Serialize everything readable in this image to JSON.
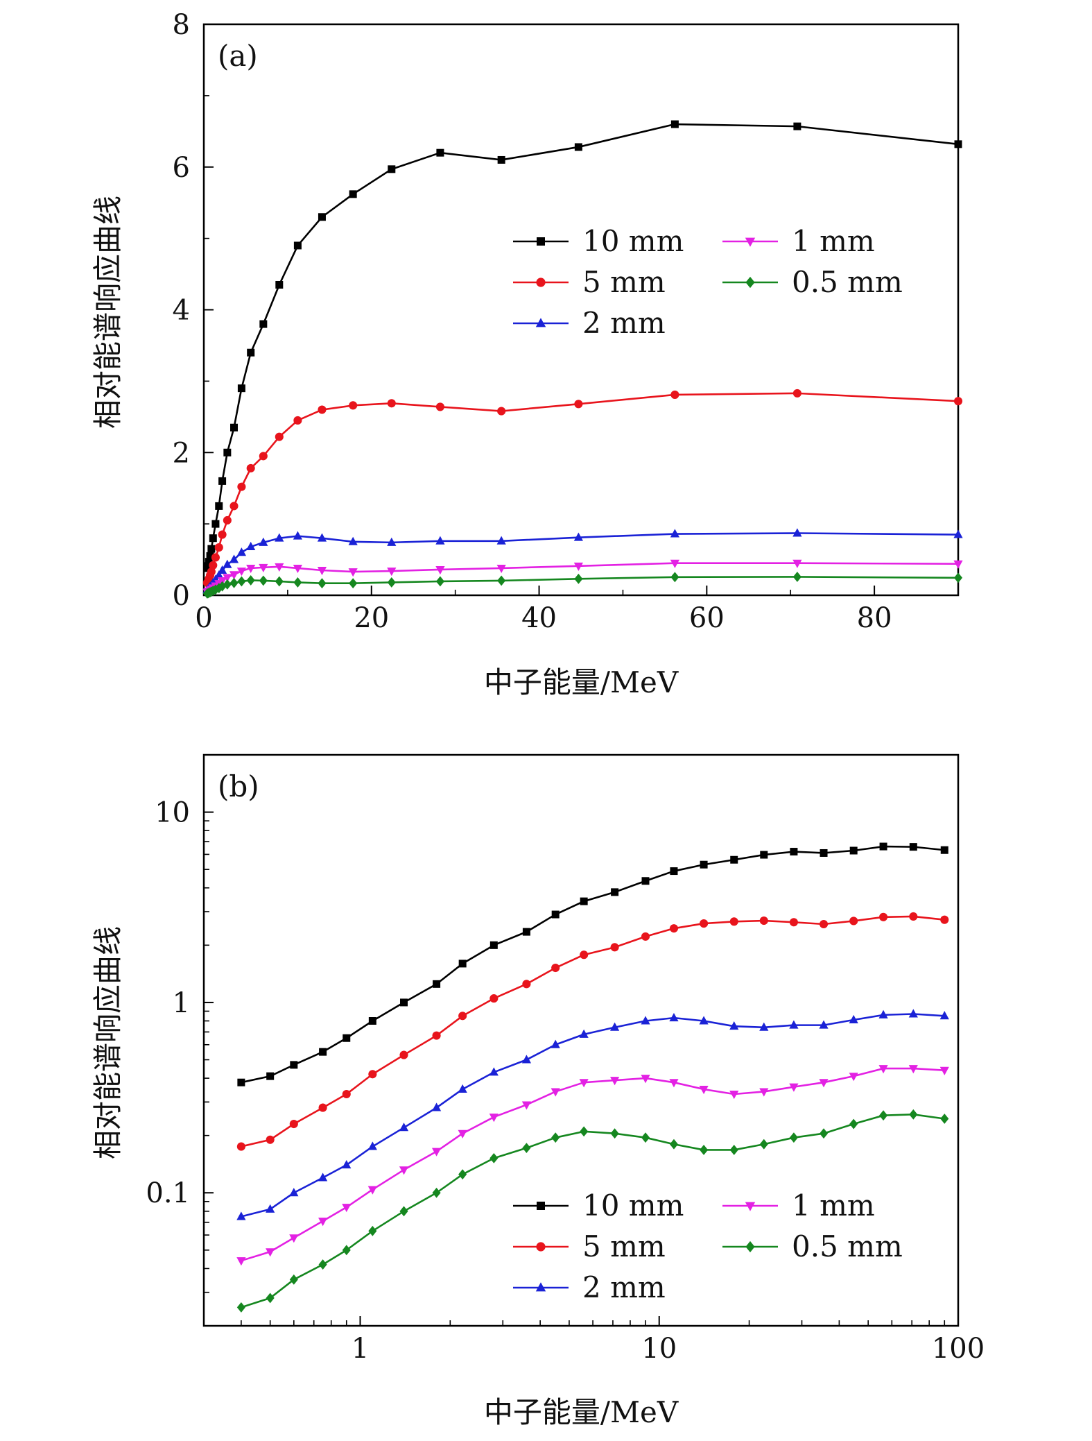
{
  "chart_data": [
    {
      "type": "line",
      "panel_label": "(a)",
      "xlabel": "中子能量/MeV",
      "ylabel": "相对能谱响应曲线",
      "xscale": "linear",
      "yscale": "linear",
      "xlim": [
        0,
        90
      ],
      "ylim": [
        0,
        8
      ],
      "xticks": [
        0,
        20,
        40,
        60,
        80
      ],
      "xtick_labels": [
        "0",
        "20",
        "40",
        "60",
        "80"
      ],
      "yticks": [
        0,
        2,
        4,
        6,
        8
      ],
      "ytick_labels": [
        "0",
        "2",
        "4",
        "6",
        "8"
      ],
      "grid": false,
      "legend": "right",
      "x": [
        0.4,
        0.5,
        0.6,
        0.75,
        0.9,
        1.1,
        1.4,
        1.8,
        2.2,
        2.8,
        3.6,
        4.5,
        5.6,
        7.1,
        9,
        11.2,
        14.1,
        17.8,
        22.4,
        28.2,
        35.5,
        44.7,
        56.2,
        70.8,
        90
      ],
      "series": [
        {
          "name": "10 mm",
          "color": "#000000",
          "marker": "square",
          "values": [
            0.38,
            0.41,
            0.47,
            0.55,
            0.65,
            0.8,
            1.0,
            1.25,
            1.6,
            2.0,
            2.35,
            2.9,
            3.4,
            3.8,
            4.35,
            4.9,
            5.3,
            5.62,
            5.97,
            6.2,
            6.1,
            6.28,
            6.6,
            6.57,
            6.32
          ]
        },
        {
          "name": "5 mm",
          "color": "#e8141c",
          "marker": "circle",
          "values": [
            0.175,
            0.19,
            0.23,
            0.28,
            0.33,
            0.42,
            0.53,
            0.67,
            0.85,
            1.05,
            1.25,
            1.52,
            1.78,
            1.95,
            2.22,
            2.45,
            2.6,
            2.66,
            2.69,
            2.64,
            2.58,
            2.68,
            2.81,
            2.83,
            2.72
          ]
        },
        {
          "name": "2 mm",
          "color": "#1a22d6",
          "marker": "triangle-up",
          "values": [
            0.075,
            0.082,
            0.1,
            0.12,
            0.14,
            0.175,
            0.22,
            0.28,
            0.35,
            0.43,
            0.5,
            0.6,
            0.68,
            0.74,
            0.8,
            0.83,
            0.8,
            0.75,
            0.74,
            0.76,
            0.76,
            0.81,
            0.86,
            0.87,
            0.85
          ]
        },
        {
          "name": "1 mm",
          "color": "#e321e3",
          "marker": "triangle-down",
          "values": [
            0.044,
            0.049,
            0.058,
            0.071,
            0.084,
            0.104,
            0.132,
            0.165,
            0.205,
            0.25,
            0.29,
            0.34,
            0.38,
            0.39,
            0.4,
            0.38,
            0.35,
            0.33,
            0.34,
            0.36,
            0.38,
            0.41,
            0.45,
            0.45,
            0.44
          ]
        },
        {
          "name": "0.5 mm",
          "color": "#15871f",
          "marker": "diamond",
          "values": [
            0.025,
            0.028,
            0.035,
            0.042,
            0.05,
            0.063,
            0.08,
            0.1,
            0.125,
            0.152,
            0.172,
            0.195,
            0.21,
            0.205,
            0.195,
            0.18,
            0.168,
            0.168,
            0.18,
            0.195,
            0.205,
            0.23,
            0.255,
            0.258,
            0.245
          ]
        }
      ]
    },
    {
      "type": "line",
      "panel_label": "(b)",
      "xlabel": "中子能量/MeV",
      "ylabel": "相对能谱响应曲线",
      "xscale": "log",
      "yscale": "log",
      "xlim": [
        0.3,
        100
      ],
      "ylim": [
        0.02,
        20
      ],
      "xticks": [
        1,
        10,
        100
      ],
      "xtick_labels": [
        "1",
        "10",
        "100"
      ],
      "yticks": [
        0.1,
        1,
        10
      ],
      "ytick_labels": [
        "0.1",
        "1",
        "10"
      ],
      "grid": false,
      "legend": "bottom-right",
      "x": [
        0.4,
        0.5,
        0.6,
        0.75,
        0.9,
        1.1,
        1.4,
        1.8,
        2.2,
        2.8,
        3.6,
        4.5,
        5.6,
        7.1,
        9,
        11.2,
        14.1,
        17.8,
        22.4,
        28.2,
        35.5,
        44.7,
        56.2,
        70.8,
        90
      ],
      "series": [
        {
          "name": "10 mm",
          "color": "#000000",
          "marker": "square",
          "values": [
            0.38,
            0.41,
            0.47,
            0.55,
            0.65,
            0.8,
            1.0,
            1.25,
            1.6,
            2.0,
            2.35,
            2.9,
            3.4,
            3.8,
            4.35,
            4.9,
            5.3,
            5.62,
            5.97,
            6.2,
            6.1,
            6.28,
            6.6,
            6.57,
            6.32
          ]
        },
        {
          "name": "5 mm",
          "color": "#e8141c",
          "marker": "circle",
          "values": [
            0.175,
            0.19,
            0.23,
            0.28,
            0.33,
            0.42,
            0.53,
            0.67,
            0.85,
            1.05,
            1.25,
            1.52,
            1.78,
            1.95,
            2.22,
            2.45,
            2.6,
            2.66,
            2.69,
            2.64,
            2.58,
            2.68,
            2.81,
            2.83,
            2.72
          ]
        },
        {
          "name": "2 mm",
          "color": "#1a22d6",
          "marker": "triangle-up",
          "values": [
            0.075,
            0.082,
            0.1,
            0.12,
            0.14,
            0.175,
            0.22,
            0.28,
            0.35,
            0.43,
            0.5,
            0.6,
            0.68,
            0.74,
            0.8,
            0.83,
            0.8,
            0.75,
            0.74,
            0.76,
            0.76,
            0.81,
            0.86,
            0.87,
            0.85
          ]
        },
        {
          "name": "1 mm",
          "color": "#e321e3",
          "marker": "triangle-down",
          "values": [
            0.044,
            0.049,
            0.058,
            0.071,
            0.084,
            0.104,
            0.132,
            0.165,
            0.205,
            0.25,
            0.29,
            0.34,
            0.38,
            0.39,
            0.4,
            0.38,
            0.35,
            0.33,
            0.34,
            0.36,
            0.38,
            0.41,
            0.45,
            0.45,
            0.44
          ]
        },
        {
          "name": "0.5 mm",
          "color": "#15871f",
          "marker": "diamond",
          "values": [
            0.025,
            0.028,
            0.035,
            0.042,
            0.05,
            0.063,
            0.08,
            0.1,
            0.125,
            0.152,
            0.172,
            0.195,
            0.21,
            0.205,
            0.195,
            0.18,
            0.168,
            0.168,
            0.18,
            0.195,
            0.205,
            0.23,
            0.255,
            0.258,
            0.245
          ]
        }
      ]
    }
  ]
}
